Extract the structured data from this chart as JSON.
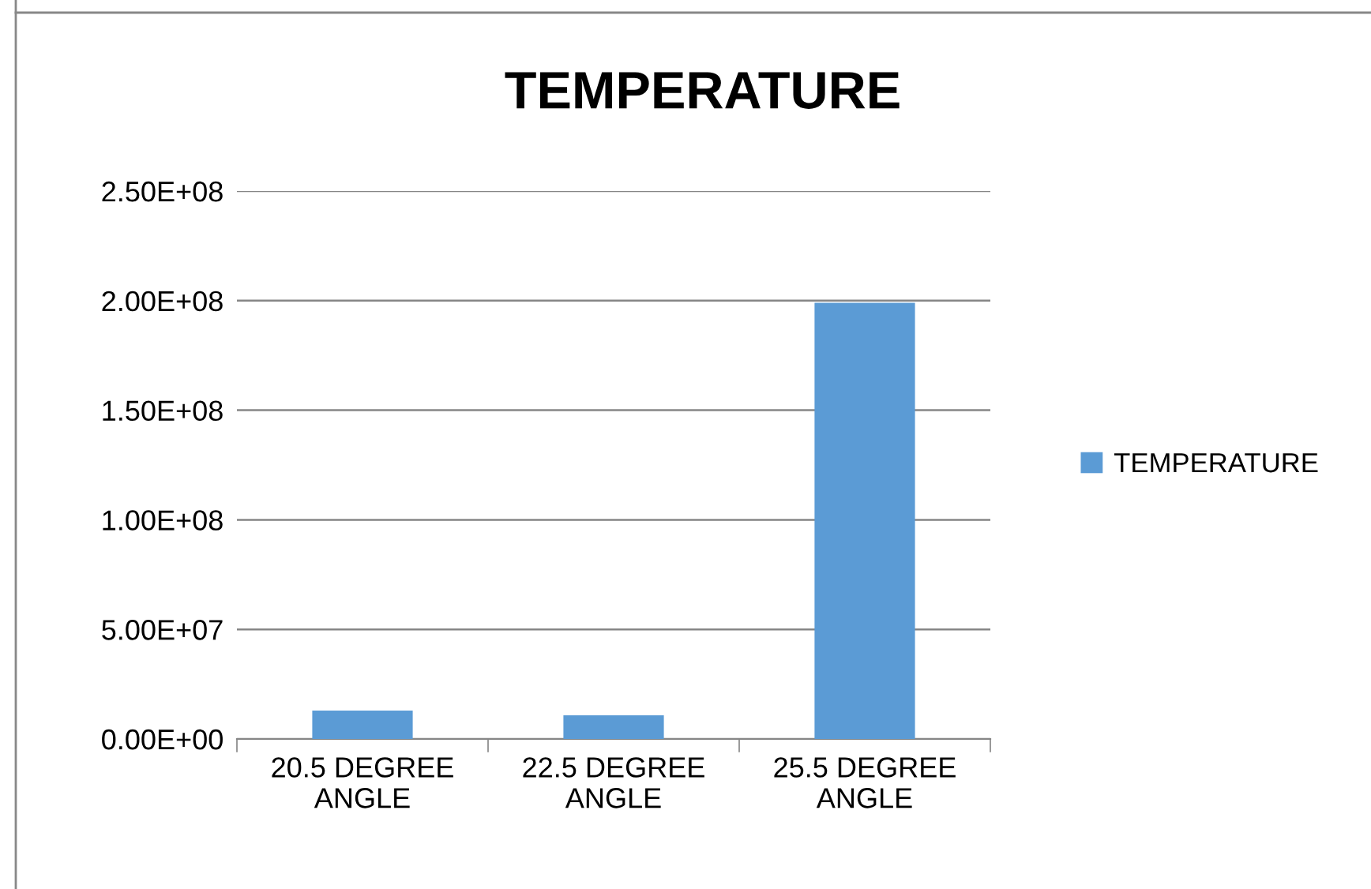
{
  "chart_data": {
    "type": "bar",
    "title": "TEMPERATURE",
    "categories": [
      "20.5 DEGREE\nANGLE",
      "22.5 DEGREE\nANGLE",
      "25.5 DEGREE\nANGLE"
    ],
    "series": [
      {
        "name": "TEMPERATURE",
        "color": "#5b9bd5",
        "values": [
          13000000,
          10800000,
          199000000
        ]
      }
    ],
    "ylim": [
      0,
      250000000
    ],
    "yticks": [
      {
        "value": 0,
        "label": "0.00E+00"
      },
      {
        "value": 50000000,
        "label": "5.00E+07"
      },
      {
        "value": 100000000,
        "label": "1.00E+08"
      },
      {
        "value": 150000000,
        "label": "1.50E+08"
      },
      {
        "value": 200000000,
        "label": "2.00E+08"
      },
      {
        "value": 250000000,
        "label": "2.50E+08"
      }
    ],
    "grid": "y",
    "legend": "right"
  }
}
